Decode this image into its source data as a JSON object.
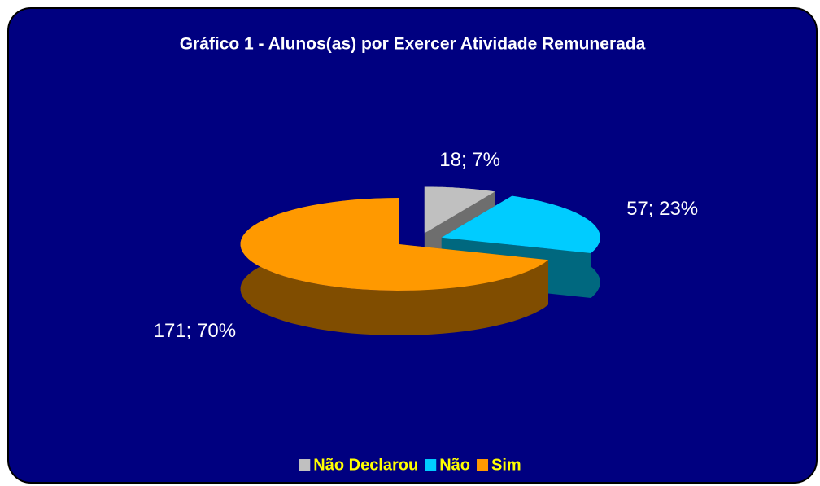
{
  "chart_data": {
    "type": "pie3d",
    "title": "Gráfico 1 - Alunos(as) por Exercer Atividade Remunerada",
    "categories": [
      "Não Declarou",
      "Não",
      "Sim"
    ],
    "values": [
      18,
      57,
      171
    ],
    "value_labels": [
      "18; 7%",
      "57; 23%",
      "171; 70%"
    ],
    "colors": [
      "#c0c0c0",
      "#00ccff",
      "#ff9900"
    ],
    "side_colors": [
      "#6e6e6e",
      "#00687f",
      "#804d00"
    ],
    "legend": "bottom"
  }
}
